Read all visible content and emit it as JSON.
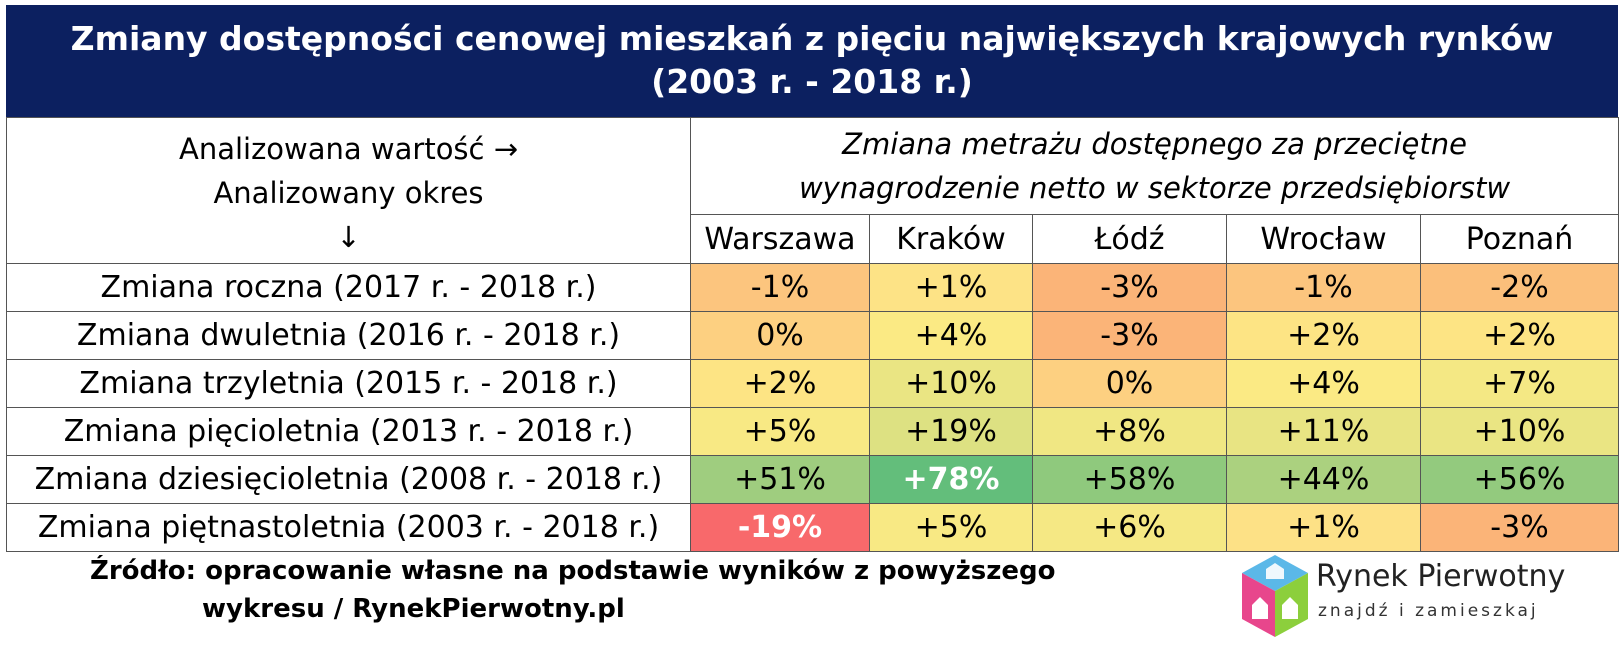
{
  "title": {
    "line1": "Zmiany dostępności cenowej mieszkań z pięciu największych krajowych rynków",
    "line2": "(2003 r. - 2018 r.)"
  },
  "header": {
    "left_line1": "Analizowana wartość →",
    "left_line2": "Analizowany okres",
    "left_line3": "↓",
    "right_line1": "Zmiana metrażu dostępnego za przeciętne",
    "right_line2": "wynagrodzenie netto w sektorze przedsiębiorstw"
  },
  "chart_data": {
    "type": "table",
    "columns": [
      "Warszawa",
      "Kraków",
      "Łódź",
      "Wrocław",
      "Poznań"
    ],
    "rows": [
      {
        "label": "Zmiana roczna (2017 r. - 2018 r.)",
        "values": [
          "-1%",
          "+1%",
          "-3%",
          "-1%",
          "-2%"
        ],
        "colors": [
          "#fcc57e",
          "#fde386",
          "#fbb478",
          "#fcc57e",
          "#fbbf7b"
        ]
      },
      {
        "label": "Zmiana dwuletnia (2016 r. - 2018 r.)",
        "values": [
          "0%",
          "+4%",
          "-3%",
          "+2%",
          "+2%"
        ],
        "colors": [
          "#fdd081",
          "#fbea84",
          "#fbb478",
          "#fde484",
          "#fde484"
        ]
      },
      {
        "label": "Zmiana trzyletnia (2015 r. - 2018 r.)",
        "values": [
          "+2%",
          "+10%",
          "0%",
          "+4%",
          "+7%"
        ],
        "colors": [
          "#fde484",
          "#eae583",
          "#fdd081",
          "#fbea84",
          "#f4e884"
        ]
      },
      {
        "label": "Zmiana pięcioletnia (2013 r. - 2018 r.)",
        "values": [
          "+5%",
          "+19%",
          "+8%",
          "+11%",
          "+10%"
        ],
        "colors": [
          "#f8e984",
          "#dde182",
          "#f0e783",
          "#e8e483",
          "#eae583"
        ]
      },
      {
        "label": "Zmiana dziesięcioletnia (2008 r. - 2018 r.)",
        "values": [
          "+51%",
          "+78%",
          "+58%",
          "+44%",
          "+56%"
        ],
        "colors": [
          "#9fcd7f",
          "#63be7b",
          "#8fc97d",
          "#abd17f",
          "#93ca7e"
        ],
        "bold": [
          false,
          true,
          false,
          false,
          false
        ]
      },
      {
        "label": "Zmiana piętnastoletnia (2003 r. - 2018 r.)",
        "values": [
          "-19%",
          "+5%",
          "+6%",
          "+1%",
          "-3%"
        ],
        "colors": [
          "#f8696b",
          "#f8e984",
          "#f5e884",
          "#fde186",
          "#fbb478"
        ],
        "bold": [
          true,
          false,
          false,
          false,
          false
        ]
      }
    ]
  },
  "source": {
    "line1": "Źródło: opracowanie własne na podstawie wyników z powyższego",
    "line2": "wykresu / RynekPierwotny.pl"
  },
  "logo": {
    "name": "Rynek Pierwotny",
    "tagline": "znajdź i zamieszkaj"
  }
}
